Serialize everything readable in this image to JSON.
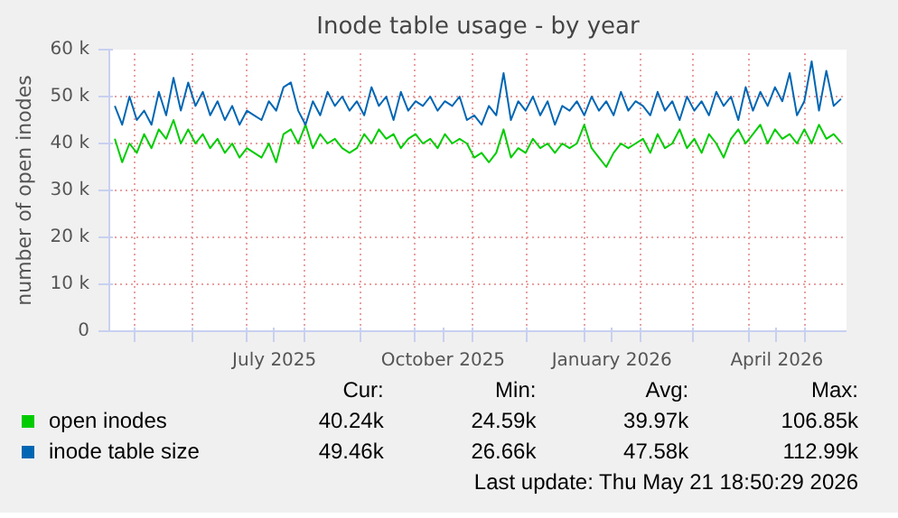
{
  "chart_data": {
    "type": "line",
    "title": "Inode table usage - by year",
    "ylabel": "number of open inodes",
    "x": [
      "2025-04-20",
      "2025-04-24",
      "2025-04-28",
      "2025-05-02",
      "2025-05-06",
      "2025-05-10",
      "2025-05-14",
      "2025-05-18",
      "2025-05-22",
      "2025-05-26",
      "2025-05-30",
      "2025-06-03",
      "2025-06-07",
      "2025-06-11",
      "2025-06-15",
      "2025-06-19",
      "2025-06-23",
      "2025-06-27",
      "2025-07-01",
      "2025-07-05",
      "2025-07-09",
      "2025-07-13",
      "2025-07-17",
      "2025-07-21",
      "2025-07-25",
      "2025-07-29",
      "2025-08-02",
      "2025-08-06",
      "2025-08-10",
      "2025-08-14",
      "2025-08-18",
      "2025-08-22",
      "2025-08-26",
      "2025-08-30",
      "2025-09-03",
      "2025-09-07",
      "2025-09-11",
      "2025-09-15",
      "2025-09-19",
      "2025-09-23",
      "2025-09-27",
      "2025-10-01",
      "2025-10-05",
      "2025-10-09",
      "2025-10-13",
      "2025-10-17",
      "2025-10-21",
      "2025-10-25",
      "2025-10-29",
      "2025-11-02",
      "2025-11-06",
      "2025-11-10",
      "2025-11-14",
      "2025-11-18",
      "2025-11-22",
      "2025-11-26",
      "2025-11-30",
      "2025-12-04",
      "2025-12-08",
      "2025-12-12",
      "2025-12-16",
      "2025-12-20",
      "2025-12-24",
      "2025-12-28",
      "2026-01-01",
      "2026-01-05",
      "2026-01-09",
      "2026-01-13",
      "2026-01-17",
      "2026-01-21",
      "2026-01-25",
      "2026-01-29",
      "2026-02-02",
      "2026-02-06",
      "2026-02-10",
      "2026-02-14",
      "2026-02-18",
      "2026-02-22",
      "2026-02-26",
      "2026-03-02",
      "2026-03-06",
      "2026-03-10",
      "2026-03-14",
      "2026-03-18",
      "2026-03-22",
      "2026-03-26",
      "2026-03-30",
      "2026-04-03",
      "2026-04-07",
      "2026-04-11",
      "2026-04-15",
      "2026-04-19",
      "2026-04-23",
      "2026-04-27",
      "2026-05-01",
      "2026-05-05",
      "2026-05-09",
      "2026-05-13",
      "2026-05-17",
      "2026-05-21"
    ],
    "series": [
      {
        "name": "open inodes",
        "color": "#00cc00",
        "values": [
          41000,
          36000,
          40000,
          38000,
          42000,
          39000,
          43000,
          41000,
          45000,
          40000,
          43000,
          40000,
          42000,
          39000,
          41000,
          38000,
          40000,
          37000,
          39000,
          38000,
          37000,
          40000,
          36000,
          42000,
          43000,
          40000,
          44000,
          39000,
          42000,
          40000,
          41000,
          39000,
          38000,
          39000,
          42000,
          40000,
          43000,
          41000,
          42000,
          39000,
          41000,
          42000,
          40000,
          41000,
          39000,
          42000,
          40000,
          41000,
          40000,
          37000,
          38000,
          36000,
          38000,
          43000,
          37000,
          39000,
          38000,
          41000,
          39000,
          40000,
          38000,
          40000,
          39000,
          40000,
          44000,
          39000,
          37000,
          35000,
          38000,
          40000,
          39000,
          40000,
          41000,
          38000,
          42000,
          39000,
          40000,
          43000,
          39000,
          41000,
          38000,
          42000,
          40000,
          37000,
          41000,
          43000,
          40000,
          42000,
          44000,
          40000,
          43000,
          41000,
          42000,
          40000,
          43000,
          40000,
          44000,
          41000,
          42000,
          40200
        ]
      },
      {
        "name": "inode table size",
        "color": "#0066b3",
        "values": [
          48000,
          44000,
          50000,
          45000,
          47000,
          44000,
          51000,
          46000,
          54000,
          47000,
          53000,
          48000,
          51000,
          46000,
          49000,
          45000,
          48000,
          44000,
          47000,
          46000,
          45000,
          49000,
          47000,
          52000,
          53000,
          47000,
          44000,
          49000,
          46000,
          51000,
          48000,
          50000,
          47000,
          49000,
          46000,
          52000,
          48000,
          50000,
          45000,
          51000,
          47000,
          49000,
          48000,
          50000,
          47000,
          49000,
          48000,
          50000,
          45000,
          46000,
          44000,
          48000,
          46000,
          55000,
          45000,
          49000,
          47000,
          50000,
          46000,
          49000,
          44000,
          48000,
          47000,
          49000,
          46000,
          50000,
          47000,
          49000,
          46000,
          51000,
          47000,
          49000,
          48000,
          46000,
          51000,
          47000,
          49000,
          45000,
          50000,
          47000,
          49000,
          46000,
          51000,
          48000,
          50000,
          45000,
          52000,
          47000,
          51000,
          48000,
          52000,
          49000,
          55000,
          46000,
          49000,
          57500,
          47000,
          55500,
          48000,
          49500
        ]
      }
    ],
    "xlim": [
      "2025-04-17",
      "2026-05-24"
    ],
    "xticks": [
      {
        "value": "2025-05-01",
        "label": null
      },
      {
        "value": "2025-06-01",
        "label": null
      },
      {
        "value": "2025-07-01",
        "label": null
      },
      {
        "value": "2025-07-16",
        "label": "July 2025"
      },
      {
        "value": "2025-08-01",
        "label": null
      },
      {
        "value": "2025-09-01",
        "label": null
      },
      {
        "value": "2025-10-01",
        "label": null
      },
      {
        "value": "2025-10-16",
        "label": "October 2025"
      },
      {
        "value": "2025-11-01",
        "label": null
      },
      {
        "value": "2025-12-01",
        "label": null
      },
      {
        "value": "2026-01-01",
        "label": null
      },
      {
        "value": "2026-01-16",
        "label": "January 2026"
      },
      {
        "value": "2026-02-01",
        "label": null
      },
      {
        "value": "2026-03-01",
        "label": null
      },
      {
        "value": "2026-04-01",
        "label": null
      },
      {
        "value": "2026-04-16",
        "label": "April 2026"
      },
      {
        "value": "2026-05-01",
        "label": null
      }
    ],
    "ylim": [
      0,
      60000
    ],
    "yticks": [
      0,
      {
        "value": 10000,
        "label": "10 k"
      },
      {
        "value": 20000,
        "label": "20 k"
      },
      {
        "value": 30000,
        "label": "30 k"
      },
      {
        "value": 40000,
        "label": "40 k"
      },
      {
        "value": 50000,
        "label": "50 k"
      },
      {
        "value": 60000,
        "label": "60 k"
      }
    ],
    "grid": true,
    "legend": "bottom",
    "marker": "none",
    "line_style": "solid",
    "annotations": [
      "Cur:",
      "Min:",
      "Avg:",
      "Max:",
      "40.24k",
      "24.59k",
      "39.97k",
      "106.85k",
      "49.46k",
      "26.66k",
      "47.58k",
      "112.99k",
      "Last update: Thu May 21 18:50:29 2026"
    ]
  }
}
